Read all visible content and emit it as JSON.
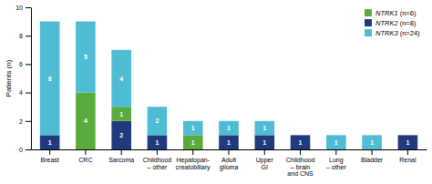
{
  "chart_data": {
    "type": "bar",
    "stacked": true,
    "categories": [
      "Breast",
      "CRC",
      "Sarcoma",
      "Childhood\n– other",
      "Hepatopan-\ncreatobiliary",
      "Adult\nglioma",
      "Upper\nGI",
      "Childhood\n– brain\nand CNS",
      "Lung\n– other",
      "Bladder",
      "Renal"
    ],
    "series": [
      {
        "name": "NTRK1 (n=6)",
        "color": "#5aab3e",
        "values": [
          0,
          4,
          1,
          0,
          1,
          0,
          0,
          0,
          0,
          0,
          0
        ]
      },
      {
        "name": "NTRK2 (n=8)",
        "color": "#1f3b7e",
        "values": [
          1,
          0,
          2,
          1,
          0,
          1,
          1,
          1,
          0,
          0,
          1
        ]
      },
      {
        "name": "NTRK3 (n=24)",
        "color": "#4dbcd4",
        "values": [
          8,
          5,
          4,
          2,
          1,
          1,
          1,
          0,
          1,
          1,
          0
        ]
      }
    ],
    "ylabel": "Patients (n)",
    "ylim": [
      0,
      10
    ],
    "yticks": [
      0,
      2,
      4,
      6,
      8,
      10
    ],
    "grid": false,
    "legend": "upper right",
    "data_labels": true
  }
}
